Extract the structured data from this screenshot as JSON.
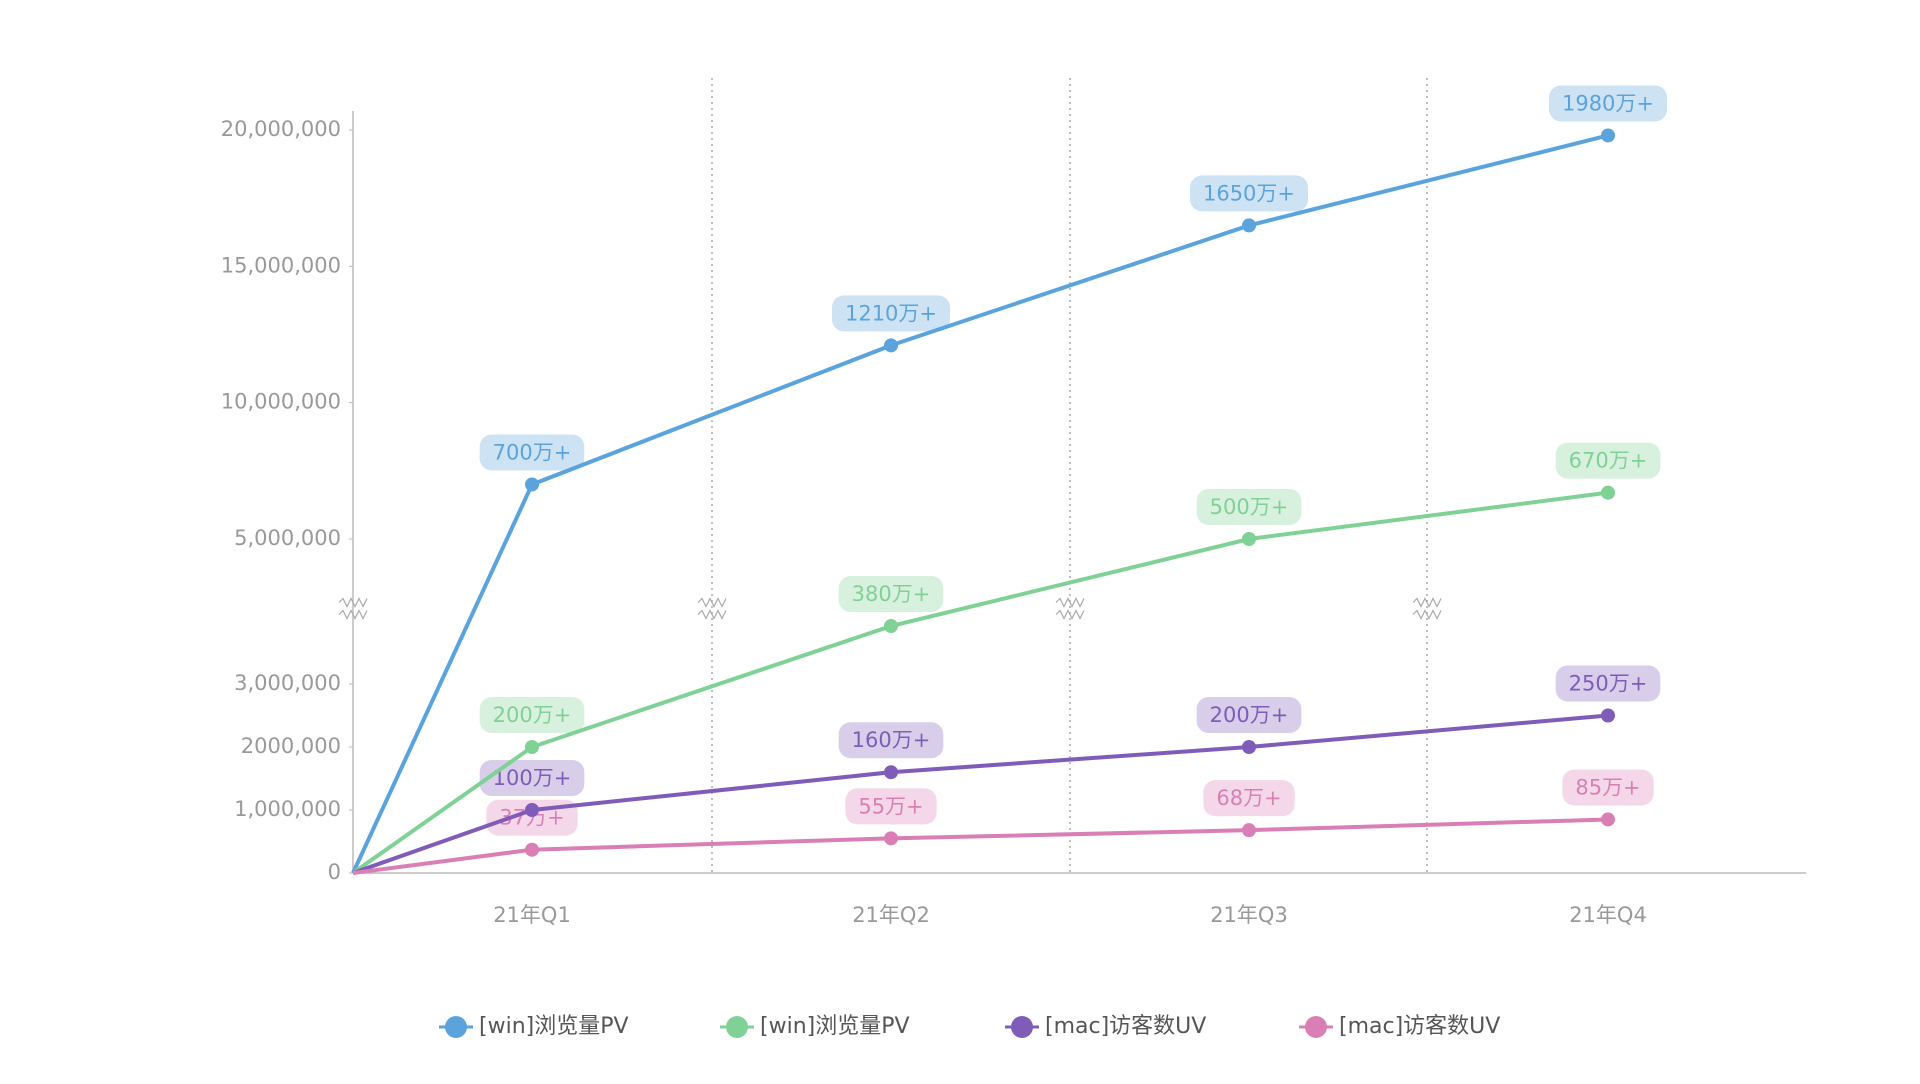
{
  "chart_data": {
    "type": "line",
    "categories": [
      null,
      "21年Q1",
      "21年Q2",
      "21年Q3",
      "21年Q4"
    ],
    "series": [
      {
        "name": "[win]浏览量PV",
        "color": "#5aa3dc",
        "values": [
          0,
          7000000,
          12100000,
          16500000,
          19800000
        ],
        "value_labels": [
          null,
          "700万+",
          "1210万+",
          "1650万+",
          "1980万+"
        ]
      },
      {
        "name": "[win]浏览量PV",
        "color": "#7fd196",
        "values": [
          0,
          2000000,
          3800000,
          5000000,
          6700000
        ],
        "value_labels": [
          null,
          "200万+",
          "380万+",
          "500万+",
          "670万+"
        ]
      },
      {
        "name": "[mac]访客数UV",
        "color": "#7e5cb8",
        "values": [
          0,
          1000000,
          1600000,
          2000000,
          2500000
        ],
        "value_labels": [
          null,
          "100万+",
          "160万+",
          "200万+",
          "250万+"
        ]
      },
      {
        "name": "[mac]访客数UV",
        "color": "#d97fb5",
        "values": [
          0,
          370000,
          550000,
          680000,
          850000
        ],
        "value_labels": [
          null,
          "37万+",
          "55万+",
          "68万+",
          "85万+"
        ]
      }
    ],
    "ylim": [
      0,
      20000000
    ],
    "axis_break": [
      3000000,
      5000000
    ],
    "yticks": [
      0,
      {
        "value": 1000000,
        "label": "1,000,000"
      },
      {
        "value": 2000000,
        "label": "2000,000"
      },
      {
        "value": 3000000,
        "label": "3,000,000"
      },
      {
        "value": 5000000,
        "label": "5,000,000"
      },
      {
        "value": 10000000,
        "label": "10,000,000"
      },
      {
        "value": 15000000,
        "label": "15,000,000"
      },
      {
        "value": 20000000,
        "label": "20,000,000"
      }
    ],
    "grid": false,
    "legend": "bottom"
  }
}
